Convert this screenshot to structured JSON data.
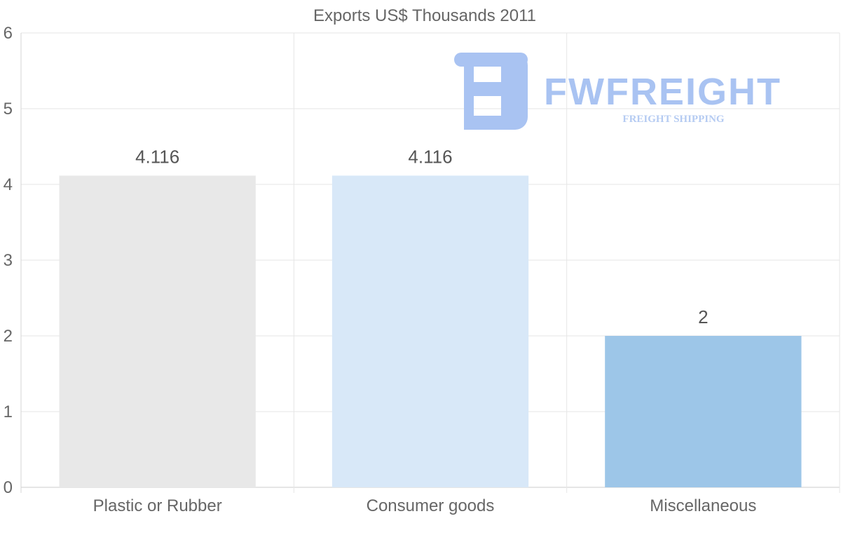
{
  "chart_data": {
    "type": "bar",
    "title": "Exports US$ Thousands 2011",
    "categories": [
      "Plastic or Rubber",
      "Consumer goods",
      "Miscellaneous"
    ],
    "values": [
      4.116,
      4.116,
      2
    ],
    "value_labels": [
      "4.116",
      "4.116",
      "2"
    ],
    "colors": [
      "#e8e8e8",
      "#d8e8f8",
      "#9dc6e8"
    ],
    "xlabel": "",
    "ylabel": "",
    "ylim": [
      0,
      6
    ],
    "yticks": [
      0,
      1,
      2,
      3,
      4,
      5,
      6
    ],
    "grid": true,
    "legend": "none"
  },
  "watermark": {
    "name": "FWFREIGHT",
    "tagline": "FREIGHT SHIPPING"
  }
}
